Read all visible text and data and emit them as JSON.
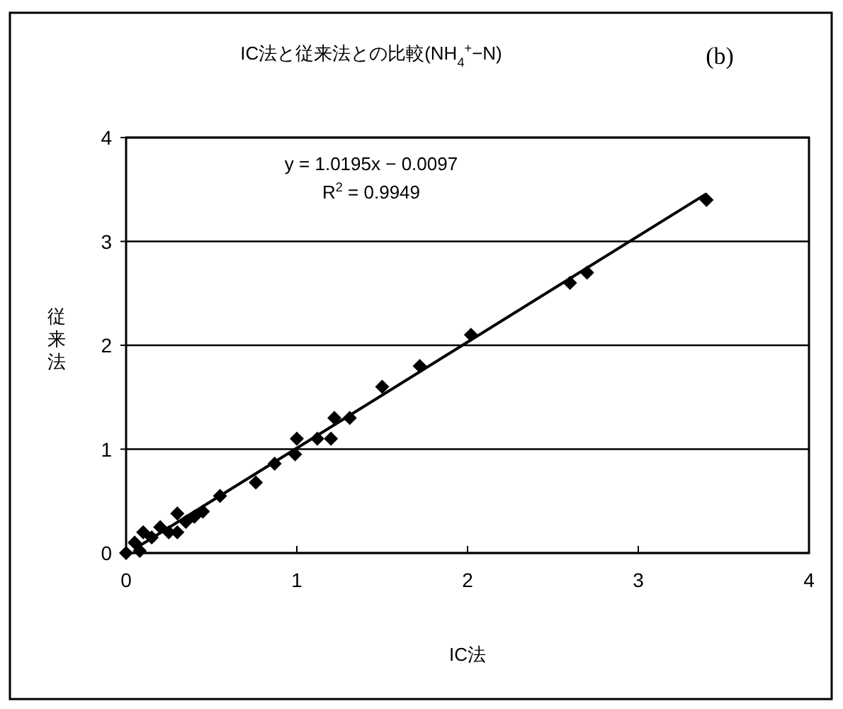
{
  "chart_data": {
    "type": "scatter",
    "title": "IC法と従来法との比較(NH$_{4}$$^{+}$−N)",
    "xlabel": "IC法",
    "ylabel": "従来法",
    "annotations": [
      "(b)",
      "y = 1.0195x − 0.0097",
      "R$^{2}$ = 0.9949"
    ],
    "xlim": [
      0,
      4
    ],
    "ylim": [
      0,
      4
    ],
    "xticks": [
      0,
      1,
      2,
      3,
      4
    ],
    "yticks": [
      0,
      1,
      2,
      3,
      4
    ],
    "grid": "y",
    "marker": "diamond",
    "series": [
      {
        "color": "#000000",
        "x": [
          3.4,
          2.6,
          2.7,
          2.02,
          1.72,
          1.5,
          1.31,
          1.22,
          1.2,
          1.12,
          1.0,
          0.99,
          0.87,
          0.76,
          0.55,
          0.45,
          0.4,
          0.35,
          0.3,
          0.3,
          0.25,
          0.2,
          0.15,
          0.1,
          0.08,
          0.05,
          0.0
        ],
        "values": [
          3.4,
          2.6,
          2.7,
          2.1,
          1.8,
          1.6,
          1.3,
          1.3,
          1.1,
          1.1,
          1.1,
          0.95,
          0.86,
          0.68,
          0.55,
          0.4,
          0.35,
          0.3,
          0.38,
          0.2,
          0.2,
          0.25,
          0.15,
          0.2,
          0.02,
          0.1,
          0.0
        ]
      },
      {
        "type": "line",
        "color": "#000000",
        "marker": "none",
        "x": [
          0.05,
          3.4
        ],
        "values": [
          0.04,
          3.46
        ]
      }
    ]
  }
}
